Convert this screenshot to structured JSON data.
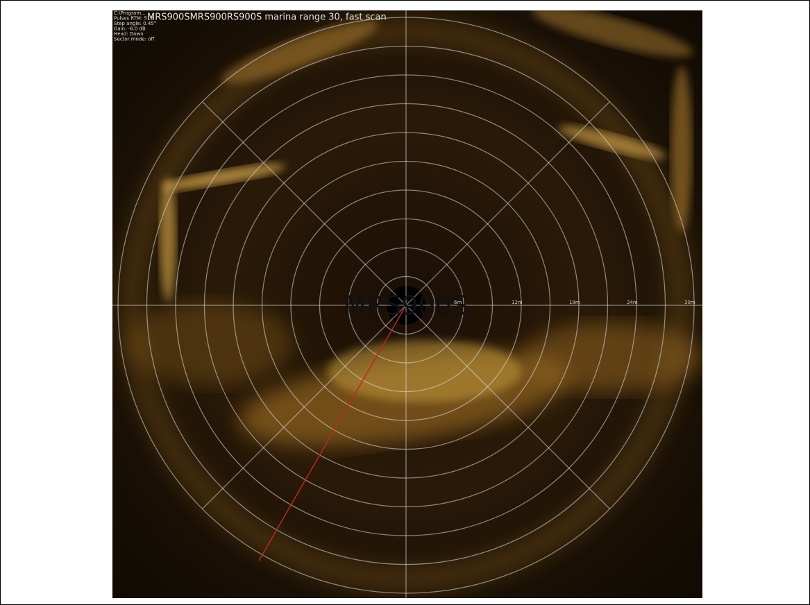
{
  "header": {
    "title": "MRS900SMRS900RS900S marina range 30, fast scan",
    "info": [
      "C:\\Program...",
      "Pulses RTM: 512",
      "Step angle: 0.45°",
      "Gain: -6.0 dB",
      "Head: Down",
      "Sector mode: off"
    ]
  },
  "center_label": "MRS900S",
  "range_labels": [
    "6m",
    "12m",
    "18m",
    "24m",
    "30m"
  ]
}
